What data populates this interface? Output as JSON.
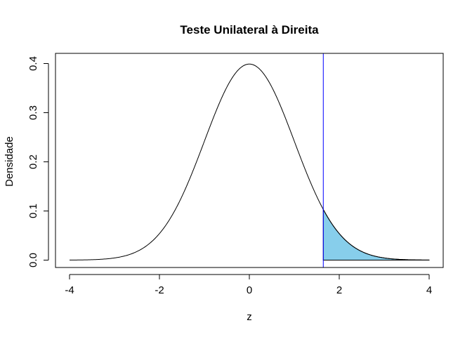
{
  "chart_data": {
    "type": "line",
    "title": "Teste Unilateral à Direita",
    "xlabel": "z",
    "ylabel": "Densidade",
    "xlim": [
      -4,
      4
    ],
    "ylim": [
      0,
      0.4
    ],
    "x_ticks": [
      "-4",
      "-2",
      "0",
      "2",
      "4"
    ],
    "y_ticks": [
      "0.0",
      "0.1",
      "0.2",
      "0.3",
      "0.4"
    ],
    "series": [
      {
        "distribution": "standard normal density",
        "x_range": [
          -4,
          4
        ],
        "color": "#000000"
      }
    ],
    "critical_value": 1.645,
    "critical_line_color": "#0000ff",
    "shaded_region": {
      "from": 1.645,
      "to": 4,
      "color": "#87ceeb"
    },
    "grid": false
  }
}
